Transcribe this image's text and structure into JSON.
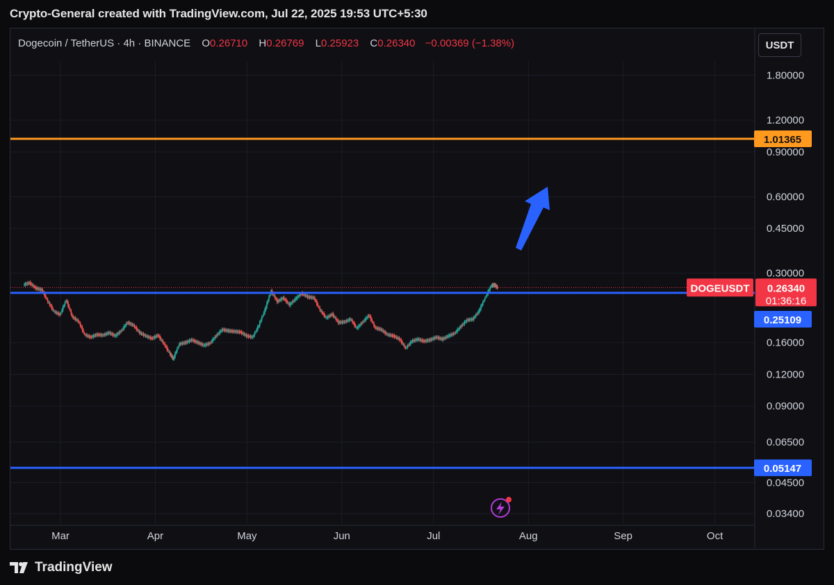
{
  "header": {
    "title": "Crypto-General created with TradingView.com, Jul 22, 2025 19:53 UTC+5:30"
  },
  "legend": {
    "symbol": "Dogecoin / TetherUS · 4h · BINANCE",
    "o_label": "O",
    "o_value": "0.26710",
    "h_label": "H",
    "h_value": "0.26769",
    "l_label": "L",
    "l_value": "0.25923",
    "c_label": "C",
    "c_value": "0.26340",
    "change": "−0.00369 (−1.38%)"
  },
  "currency_button": {
    "label": "USDT"
  },
  "footer": {
    "brand": "TradingView"
  },
  "chart_data": {
    "type": "line",
    "symbol": "DOGEUSDT",
    "interval": "4h",
    "exchange": "BINANCE",
    "scale": "log",
    "grid": true,
    "x_ticks": [
      "Mar",
      "Apr",
      "May",
      "Jun",
      "Jul",
      "Aug",
      "Sep",
      "Oct"
    ],
    "y_ticks": [
      "1.80000",
      "1.20000",
      "0.90000",
      "0.60000",
      "0.45000",
      "0.30000",
      "0.16000",
      "0.12000",
      "0.09000",
      "0.06500",
      "0.04500",
      "0.03400"
    ],
    "ylim": [
      0.031,
      2.3
    ],
    "series": [
      {
        "x": [
          "2025-02-17",
          "2025-02-19",
          "2025-02-21",
          "2025-02-23",
          "2025-02-25",
          "2025-02-27",
          "2025-03-01",
          "2025-03-03",
          "2025-03-05",
          "2025-03-07",
          "2025-03-09",
          "2025-03-11",
          "2025-03-13",
          "2025-03-15",
          "2025-03-17",
          "2025-03-19",
          "2025-03-21",
          "2025-03-23",
          "2025-03-25",
          "2025-03-27",
          "2025-03-29",
          "2025-03-31",
          "2025-04-02",
          "2025-04-04",
          "2025-04-06",
          "2025-04-07",
          "2025-04-09",
          "2025-04-11",
          "2025-04-13",
          "2025-04-15",
          "2025-04-17",
          "2025-04-19",
          "2025-04-21",
          "2025-04-23",
          "2025-04-25",
          "2025-04-27",
          "2025-04-29",
          "2025-05-01",
          "2025-05-03",
          "2025-05-05",
          "2025-05-07",
          "2025-05-09",
          "2025-05-11",
          "2025-05-13",
          "2025-05-15",
          "2025-05-17",
          "2025-05-19",
          "2025-05-21",
          "2025-05-23",
          "2025-05-25",
          "2025-05-27",
          "2025-05-29",
          "2025-05-31",
          "2025-06-02",
          "2025-06-04",
          "2025-06-06",
          "2025-06-08",
          "2025-06-10",
          "2025-06-12",
          "2025-06-14",
          "2025-06-16",
          "2025-06-18",
          "2025-06-20",
          "2025-06-22",
          "2025-06-24",
          "2025-06-26",
          "2025-06-28",
          "2025-06-30",
          "2025-07-02",
          "2025-07-04",
          "2025-07-06",
          "2025-07-08",
          "2025-07-10",
          "2025-07-12",
          "2025-07-14",
          "2025-07-16",
          "2025-07-18",
          "2025-07-20",
          "2025-07-21",
          "2025-07-22"
        ],
        "y": [
          0.27,
          0.275,
          0.262,
          0.258,
          0.232,
          0.212,
          0.206,
          0.235,
          0.202,
          0.194,
          0.172,
          0.168,
          0.172,
          0.171,
          0.175,
          0.17,
          0.178,
          0.192,
          0.187,
          0.175,
          0.17,
          0.166,
          0.171,
          0.158,
          0.144,
          0.138,
          0.158,
          0.16,
          0.164,
          0.16,
          0.156,
          0.159,
          0.17,
          0.18,
          0.178,
          0.177,
          0.176,
          0.17,
          0.168,
          0.187,
          0.215,
          0.255,
          0.232,
          0.24,
          0.225,
          0.238,
          0.25,
          0.242,
          0.24,
          0.215,
          0.2,
          0.207,
          0.192,
          0.193,
          0.198,
          0.182,
          0.193,
          0.205,
          0.183,
          0.18,
          0.172,
          0.17,
          0.165,
          0.152,
          0.162,
          0.165,
          0.162,
          0.164,
          0.168,
          0.165,
          0.17,
          0.174,
          0.185,
          0.196,
          0.198,
          0.213,
          0.24,
          0.268,
          0.27,
          0.2634
        ]
      }
    ],
    "price_labels": [
      {
        "text": "DOGEUSDT",
        "value": "0.26340",
        "countdown": "01:36:16",
        "color": "#f23645"
      },
      {
        "text": "1.01365",
        "color": "#ff9a1f"
      },
      {
        "text": "0.25109",
        "color": "#2962ff"
      },
      {
        "text": "0.05147",
        "color": "#2962ff"
      }
    ],
    "horizontal_levels": [
      {
        "value": 1.01365,
        "color": "#ff9a1f"
      },
      {
        "value": 0.25109,
        "color": "#2962ff"
      },
      {
        "value": 0.05147,
        "color": "#2962ff"
      }
    ]
  }
}
